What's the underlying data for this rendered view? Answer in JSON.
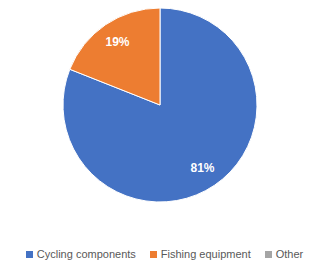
{
  "chart_data": {
    "type": "pie",
    "categories": [
      "Cycling components",
      "Fishing equipment",
      "Other"
    ],
    "values": [
      81,
      19,
      0
    ],
    "value_labels": [
      "81%",
      "19%",
      null
    ],
    "colors": [
      "#4472c4",
      "#ed7d31",
      "#a5a5a5"
    ],
    "data_labels": true,
    "legend": "bottom"
  }
}
